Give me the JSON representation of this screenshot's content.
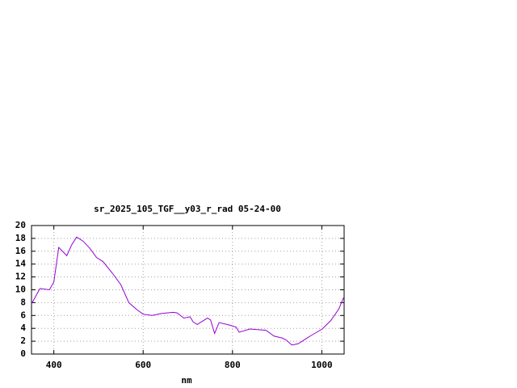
{
  "chart_data": {
    "type": "line",
    "title": "sr_2025_105_TGF__y03_r_rad 05-24-00",
    "x_label": "nm",
    "x": [
      350,
      369,
      390,
      400,
      411,
      429,
      440,
      451,
      465,
      480,
      496,
      510,
      532,
      550,
      568,
      586,
      600,
      620,
      640,
      667,
      676,
      691,
      705,
      712,
      721,
      744,
      751,
      760,
      770,
      794,
      808,
      815,
      839,
      875,
      893,
      911,
      920,
      933,
      947,
      974,
      1001,
      1020,
      1038,
      1049
    ],
    "series": [
      {
        "name": "sr_2025_105_TGF__y03_r_rad",
        "color": "#9400d3",
        "values": [
          7.8,
          10.2,
          10.0,
          11.2,
          16.6,
          15.3,
          17.0,
          18.2,
          17.6,
          16.5,
          15.0,
          14.4,
          12.5,
          10.8,
          8.0,
          6.9,
          6.2,
          6.0,
          6.3,
          6.5,
          6.4,
          5.6,
          5.8,
          5.0,
          4.6,
          5.6,
          5.3,
          3.2,
          4.9,
          4.5,
          4.2,
          3.4,
          3.9,
          3.7,
          2.8,
          2.5,
          2.2,
          1.4,
          1.6,
          2.8,
          3.9,
          5.2,
          7.0,
          8.8
        ]
      }
    ],
    "xlim": [
      350,
      1050
    ],
    "xticks": [
      400,
      600,
      800,
      1000
    ],
    "ylim": [
      0,
      20
    ],
    "yticks": [
      0,
      2,
      4,
      6,
      8,
      10,
      12,
      14,
      16,
      18,
      20
    ],
    "grid": true
  }
}
